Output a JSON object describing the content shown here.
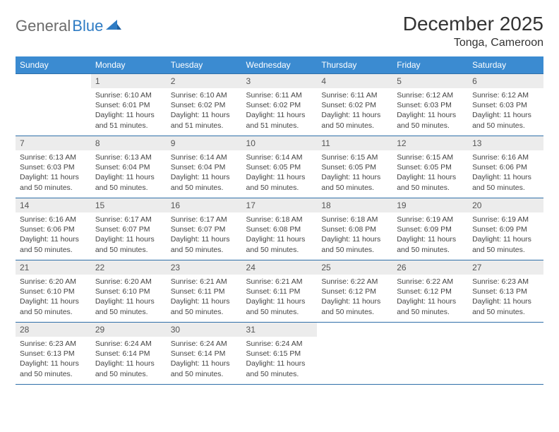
{
  "logo": {
    "text1": "General",
    "text2": "Blue"
  },
  "title": "December 2025",
  "location": "Tonga, Cameroon",
  "colors": {
    "header_bg": "#3b8bd1",
    "header_text": "#ffffff",
    "row_border": "#2f6fa8",
    "daynum_bg": "#ececec",
    "logo_grey": "#6b6b6b",
    "logo_blue": "#2f7cc4"
  },
  "weekdays": [
    "Sunday",
    "Monday",
    "Tuesday",
    "Wednesday",
    "Thursday",
    "Friday",
    "Saturday"
  ],
  "weeks": [
    [
      {
        "n": "",
        "sunrise": "",
        "sunset": "",
        "daylight": ""
      },
      {
        "n": "1",
        "sunrise": "Sunrise: 6:10 AM",
        "sunset": "Sunset: 6:01 PM",
        "daylight": "Daylight: 11 hours and 51 minutes."
      },
      {
        "n": "2",
        "sunrise": "Sunrise: 6:10 AM",
        "sunset": "Sunset: 6:02 PM",
        "daylight": "Daylight: 11 hours and 51 minutes."
      },
      {
        "n": "3",
        "sunrise": "Sunrise: 6:11 AM",
        "sunset": "Sunset: 6:02 PM",
        "daylight": "Daylight: 11 hours and 51 minutes."
      },
      {
        "n": "4",
        "sunrise": "Sunrise: 6:11 AM",
        "sunset": "Sunset: 6:02 PM",
        "daylight": "Daylight: 11 hours and 50 minutes."
      },
      {
        "n": "5",
        "sunrise": "Sunrise: 6:12 AM",
        "sunset": "Sunset: 6:03 PM",
        "daylight": "Daylight: 11 hours and 50 minutes."
      },
      {
        "n": "6",
        "sunrise": "Sunrise: 6:12 AM",
        "sunset": "Sunset: 6:03 PM",
        "daylight": "Daylight: 11 hours and 50 minutes."
      }
    ],
    [
      {
        "n": "7",
        "sunrise": "Sunrise: 6:13 AM",
        "sunset": "Sunset: 6:03 PM",
        "daylight": "Daylight: 11 hours and 50 minutes."
      },
      {
        "n": "8",
        "sunrise": "Sunrise: 6:13 AM",
        "sunset": "Sunset: 6:04 PM",
        "daylight": "Daylight: 11 hours and 50 minutes."
      },
      {
        "n": "9",
        "sunrise": "Sunrise: 6:14 AM",
        "sunset": "Sunset: 6:04 PM",
        "daylight": "Daylight: 11 hours and 50 minutes."
      },
      {
        "n": "10",
        "sunrise": "Sunrise: 6:14 AM",
        "sunset": "Sunset: 6:05 PM",
        "daylight": "Daylight: 11 hours and 50 minutes."
      },
      {
        "n": "11",
        "sunrise": "Sunrise: 6:15 AM",
        "sunset": "Sunset: 6:05 PM",
        "daylight": "Daylight: 11 hours and 50 minutes."
      },
      {
        "n": "12",
        "sunrise": "Sunrise: 6:15 AM",
        "sunset": "Sunset: 6:05 PM",
        "daylight": "Daylight: 11 hours and 50 minutes."
      },
      {
        "n": "13",
        "sunrise": "Sunrise: 6:16 AM",
        "sunset": "Sunset: 6:06 PM",
        "daylight": "Daylight: 11 hours and 50 minutes."
      }
    ],
    [
      {
        "n": "14",
        "sunrise": "Sunrise: 6:16 AM",
        "sunset": "Sunset: 6:06 PM",
        "daylight": "Daylight: 11 hours and 50 minutes."
      },
      {
        "n": "15",
        "sunrise": "Sunrise: 6:17 AM",
        "sunset": "Sunset: 6:07 PM",
        "daylight": "Daylight: 11 hours and 50 minutes."
      },
      {
        "n": "16",
        "sunrise": "Sunrise: 6:17 AM",
        "sunset": "Sunset: 6:07 PM",
        "daylight": "Daylight: 11 hours and 50 minutes."
      },
      {
        "n": "17",
        "sunrise": "Sunrise: 6:18 AM",
        "sunset": "Sunset: 6:08 PM",
        "daylight": "Daylight: 11 hours and 50 minutes."
      },
      {
        "n": "18",
        "sunrise": "Sunrise: 6:18 AM",
        "sunset": "Sunset: 6:08 PM",
        "daylight": "Daylight: 11 hours and 50 minutes."
      },
      {
        "n": "19",
        "sunrise": "Sunrise: 6:19 AM",
        "sunset": "Sunset: 6:09 PM",
        "daylight": "Daylight: 11 hours and 50 minutes."
      },
      {
        "n": "20",
        "sunrise": "Sunrise: 6:19 AM",
        "sunset": "Sunset: 6:09 PM",
        "daylight": "Daylight: 11 hours and 50 minutes."
      }
    ],
    [
      {
        "n": "21",
        "sunrise": "Sunrise: 6:20 AM",
        "sunset": "Sunset: 6:10 PM",
        "daylight": "Daylight: 11 hours and 50 minutes."
      },
      {
        "n": "22",
        "sunrise": "Sunrise: 6:20 AM",
        "sunset": "Sunset: 6:10 PM",
        "daylight": "Daylight: 11 hours and 50 minutes."
      },
      {
        "n": "23",
        "sunrise": "Sunrise: 6:21 AM",
        "sunset": "Sunset: 6:11 PM",
        "daylight": "Daylight: 11 hours and 50 minutes."
      },
      {
        "n": "24",
        "sunrise": "Sunrise: 6:21 AM",
        "sunset": "Sunset: 6:11 PM",
        "daylight": "Daylight: 11 hours and 50 minutes."
      },
      {
        "n": "25",
        "sunrise": "Sunrise: 6:22 AM",
        "sunset": "Sunset: 6:12 PM",
        "daylight": "Daylight: 11 hours and 50 minutes."
      },
      {
        "n": "26",
        "sunrise": "Sunrise: 6:22 AM",
        "sunset": "Sunset: 6:12 PM",
        "daylight": "Daylight: 11 hours and 50 minutes."
      },
      {
        "n": "27",
        "sunrise": "Sunrise: 6:23 AM",
        "sunset": "Sunset: 6:13 PM",
        "daylight": "Daylight: 11 hours and 50 minutes."
      }
    ],
    [
      {
        "n": "28",
        "sunrise": "Sunrise: 6:23 AM",
        "sunset": "Sunset: 6:13 PM",
        "daylight": "Daylight: 11 hours and 50 minutes."
      },
      {
        "n": "29",
        "sunrise": "Sunrise: 6:24 AM",
        "sunset": "Sunset: 6:14 PM",
        "daylight": "Daylight: 11 hours and 50 minutes."
      },
      {
        "n": "30",
        "sunrise": "Sunrise: 6:24 AM",
        "sunset": "Sunset: 6:14 PM",
        "daylight": "Daylight: 11 hours and 50 minutes."
      },
      {
        "n": "31",
        "sunrise": "Sunrise: 6:24 AM",
        "sunset": "Sunset: 6:15 PM",
        "daylight": "Daylight: 11 hours and 50 minutes."
      },
      {
        "n": "",
        "sunrise": "",
        "sunset": "",
        "daylight": ""
      },
      {
        "n": "",
        "sunrise": "",
        "sunset": "",
        "daylight": ""
      },
      {
        "n": "",
        "sunrise": "",
        "sunset": "",
        "daylight": ""
      }
    ]
  ]
}
